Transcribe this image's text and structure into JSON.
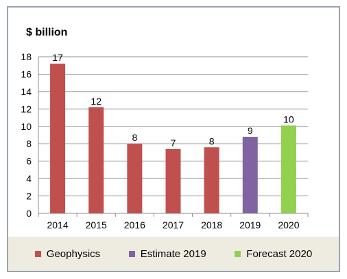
{
  "chart_data": {
    "type": "bar",
    "ylabel": "$ billion",
    "xlabel": "",
    "title": "",
    "categories": [
      "2014",
      "2015",
      "2016",
      "2017",
      "2018",
      "2019",
      "2020"
    ],
    "values": [
      17.2,
      12.2,
      8.0,
      7.4,
      7.6,
      8.8,
      10.1
    ],
    "data_labels": [
      "17",
      "12",
      "8",
      "7",
      "8",
      "9",
      "10"
    ],
    "bar_series": [
      "Geophysics",
      "Geophysics",
      "Geophysics",
      "Geophysics",
      "Geophysics",
      "Estimate 2019",
      "Forecast 2020"
    ],
    "series": [
      {
        "name": "Geophysics",
        "color": "#c0504d"
      },
      {
        "name": "Estimate 2019",
        "color": "#8064a2"
      },
      {
        "name": "Forecast 2020",
        "color": "#92d050"
      }
    ],
    "ylim": [
      0,
      18
    ],
    "yticks": [
      "0",
      "2",
      "4",
      "6",
      "8",
      "10",
      "12",
      "14",
      "16",
      "18"
    ],
    "grid": true,
    "legend_position": "bottom"
  }
}
